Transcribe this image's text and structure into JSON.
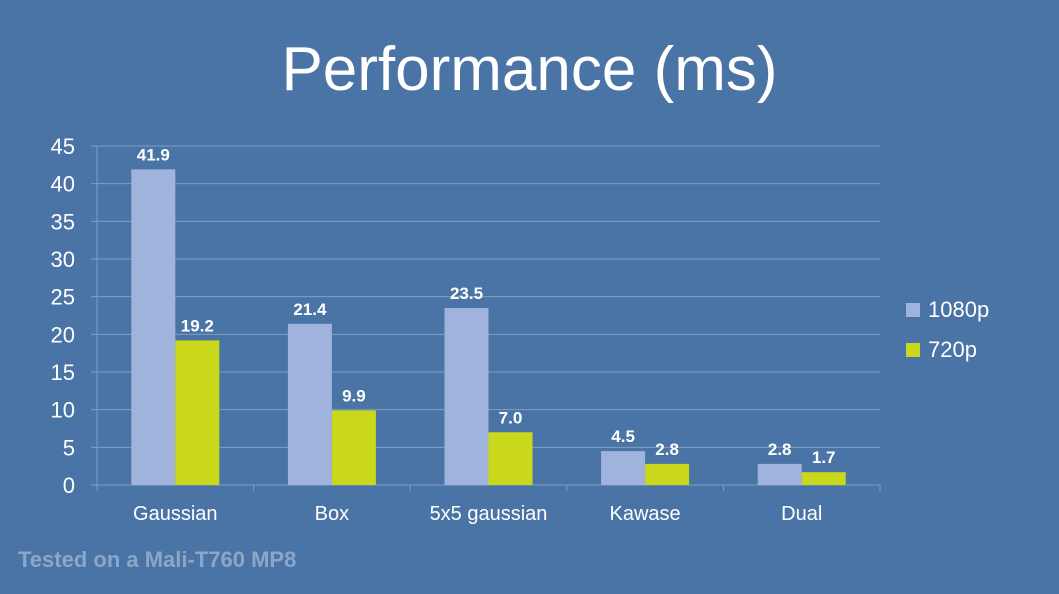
{
  "chart_data": {
    "type": "bar",
    "title": "Performance (ms)",
    "categories": [
      "Gaussian",
      "Box",
      "5x5 gaussian",
      "Kawase",
      "Dual"
    ],
    "series": [
      {
        "name": "1080p",
        "values": [
          41.9,
          21.4,
          23.5,
          4.5,
          2.8
        ],
        "color": "#9fb3dc"
      },
      {
        "name": "720p",
        "values": [
          19.2,
          9.9,
          7.0,
          2.8,
          1.7
        ],
        "color": "#cad81c"
      }
    ],
    "value_labels": [
      [
        "41.9",
        "21.4",
        "23.5",
        "4.5",
        "2.8"
      ],
      [
        "19.2",
        "9.9",
        "7.0",
        "2.8",
        "1.7"
      ]
    ],
    "ylim": [
      0,
      45
    ],
    "yticks": [
      "0",
      "5",
      "10",
      "15",
      "20",
      "25",
      "30",
      "35",
      "40",
      "45"
    ],
    "grid": true,
    "legend_position": "right"
  },
  "footnote": "Tested on a Mali-T760 MP8",
  "colors": {
    "background": "#4a74a5",
    "gridline": "#7f9ec4",
    "footnote": "#8ba6c8"
  }
}
